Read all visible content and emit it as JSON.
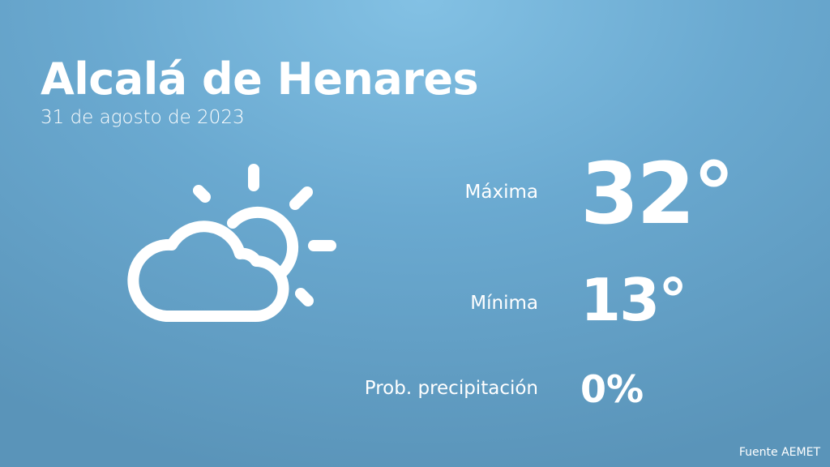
{
  "header": {
    "city": "Alcalá de Henares",
    "date": "31 de agosto de 2023"
  },
  "weather": {
    "icon": "partly-cloudy-icon",
    "max_label": "Máxima",
    "max_value": "32°",
    "min_label": "Mínima",
    "min_value": "13°",
    "precip_label": "Prob. precipitación",
    "precip_value": "0%"
  },
  "footer": {
    "source": "Fuente AEMET"
  }
}
